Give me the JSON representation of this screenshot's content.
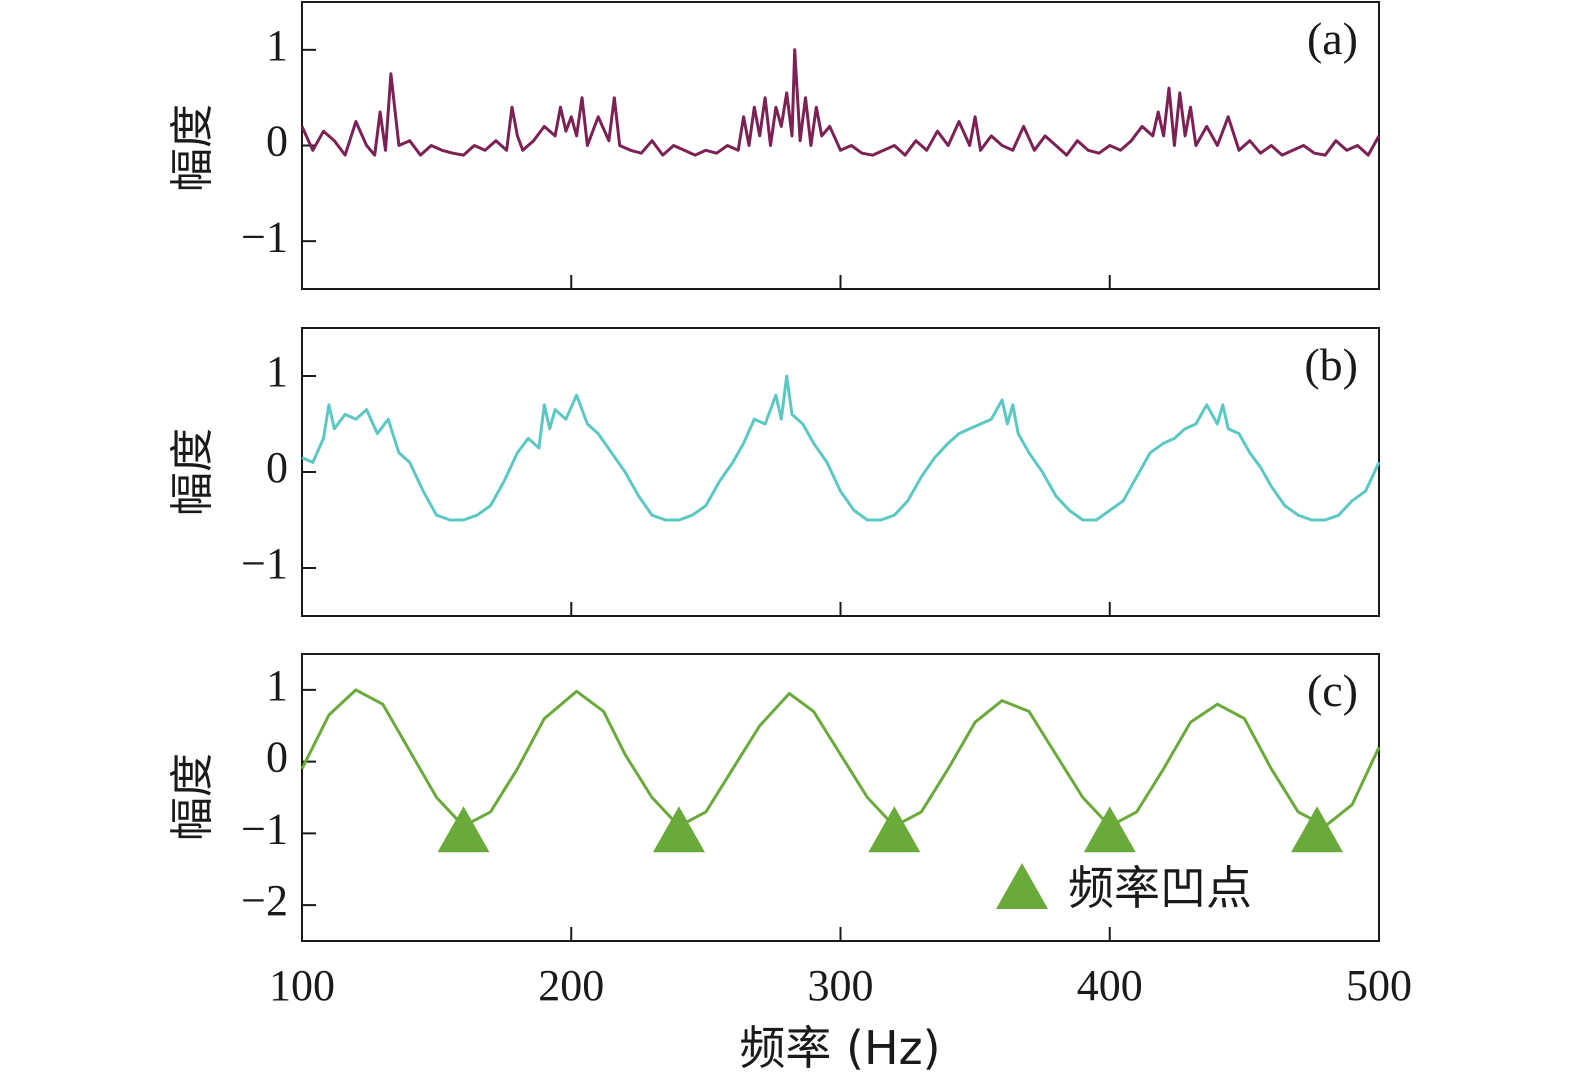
{
  "chart_data": [
    {
      "type": "line",
      "panel_label": "(a)",
      "ylabel": "幅度",
      "xlim": [
        100,
        500
      ],
      "ylim": [
        -1.5,
        1.5
      ],
      "yticks": [
        1,
        0,
        -1
      ],
      "ytick_labels": [
        "1",
        "0",
        "−1"
      ],
      "color": "#7b2154",
      "series": [
        {
          "name": "a",
          "x": [
            100,
            104,
            108,
            112,
            116,
            120,
            124,
            127,
            129,
            131,
            133,
            136,
            140,
            144,
            148,
            152,
            156,
            160,
            164,
            168,
            172,
            176,
            178,
            180,
            182,
            186,
            190,
            194,
            196,
            198,
            200,
            202,
            204,
            206,
            210,
            214,
            216,
            218,
            222,
            226,
            230,
            234,
            238,
            242,
            246,
            250,
            254,
            258,
            262,
            264,
            266,
            268,
            270,
            272,
            274,
            276,
            278,
            280,
            282,
            283,
            285,
            287,
            289,
            291,
            293,
            296,
            300,
            304,
            308,
            312,
            316,
            320,
            324,
            328,
            332,
            336,
            340,
            344,
            348,
            350,
            352,
            356,
            360,
            364,
            368,
            372,
            376,
            380,
            384,
            388,
            392,
            396,
            400,
            404,
            408,
            412,
            416,
            418,
            420,
            422,
            424,
            426,
            428,
            430,
            432,
            436,
            440,
            444,
            448,
            452,
            456,
            460,
            464,
            468,
            472,
            476,
            480,
            484,
            488,
            492,
            496,
            500
          ],
          "y": [
            0.2,
            -0.05,
            0.15,
            0.05,
            -0.1,
            0.25,
            0.0,
            -0.1,
            0.35,
            -0.05,
            0.75,
            0.0,
            0.05,
            -0.1,
            0.0,
            -0.05,
            -0.08,
            -0.1,
            0.0,
            -0.05,
            0.05,
            -0.05,
            0.4,
            0.1,
            -0.05,
            0.05,
            0.2,
            0.1,
            0.4,
            0.15,
            0.3,
            0.1,
            0.5,
            0.0,
            0.3,
            0.05,
            0.5,
            0.0,
            -0.05,
            -0.08,
            0.05,
            -0.1,
            0.0,
            -0.05,
            -0.1,
            -0.05,
            -0.08,
            0.0,
            -0.05,
            0.3,
            0.0,
            0.4,
            0.1,
            0.5,
            0.0,
            0.4,
            0.2,
            0.55,
            0.1,
            1.0,
            0.05,
            0.5,
            0.0,
            0.4,
            0.1,
            0.2,
            -0.05,
            0.0,
            -0.08,
            -0.1,
            -0.05,
            0.0,
            -0.1,
            0.05,
            -0.05,
            0.15,
            0.0,
            0.25,
            0.0,
            0.3,
            -0.05,
            0.1,
            0.0,
            -0.05,
            0.2,
            -0.05,
            0.1,
            0.0,
            -0.1,
            0.05,
            -0.05,
            -0.08,
            0.0,
            -0.05,
            0.05,
            0.2,
            0.1,
            0.35,
            0.1,
            0.6,
            0.0,
            0.55,
            0.1,
            0.4,
            0.0,
            0.2,
            0.0,
            0.3,
            -0.05,
            0.05,
            -0.08,
            0.0,
            -0.1,
            -0.05,
            0.0,
            -0.08,
            -0.1,
            0.05,
            -0.05,
            0.0,
            -0.1,
            0.1
          ]
        }
      ]
    },
    {
      "type": "line",
      "panel_label": "(b)",
      "ylabel": "幅度",
      "xlim": [
        100,
        500
      ],
      "ylim": [
        -1.5,
        1.5
      ],
      "yticks": [
        1,
        0,
        -1
      ],
      "ytick_labels": [
        "1",
        "0",
        "−1"
      ],
      "color": "#5bc8c3",
      "series": [
        {
          "name": "b",
          "x": [
            100,
            104,
            108,
            110,
            112,
            116,
            120,
            124,
            128,
            132,
            136,
            140,
            145,
            150,
            155,
            160,
            165,
            170,
            175,
            180,
            184,
            188,
            190,
            192,
            194,
            198,
            202,
            206,
            210,
            215,
            220,
            225,
            230,
            235,
            240,
            245,
            250,
            255,
            260,
            264,
            268,
            272,
            276,
            278,
            280,
            282,
            286,
            290,
            295,
            300,
            305,
            310,
            315,
            320,
            325,
            330,
            335,
            340,
            344,
            348,
            352,
            356,
            360,
            362,
            364,
            366,
            370,
            375,
            380,
            385,
            390,
            395,
            400,
            405,
            410,
            415,
            420,
            424,
            428,
            432,
            436,
            440,
            442,
            444,
            448,
            452,
            456,
            460,
            465,
            470,
            475,
            480,
            485,
            490,
            495,
            500
          ],
          "y": [
            0.15,
            0.1,
            0.35,
            0.7,
            0.45,
            0.6,
            0.55,
            0.65,
            0.4,
            0.55,
            0.2,
            0.1,
            -0.2,
            -0.45,
            -0.5,
            -0.5,
            -0.45,
            -0.35,
            -0.1,
            0.2,
            0.35,
            0.25,
            0.7,
            0.45,
            0.65,
            0.55,
            0.8,
            0.5,
            0.4,
            0.2,
            0.0,
            -0.25,
            -0.45,
            -0.5,
            -0.5,
            -0.45,
            -0.35,
            -0.1,
            0.1,
            0.3,
            0.55,
            0.5,
            0.8,
            0.55,
            1.0,
            0.6,
            0.5,
            0.3,
            0.1,
            -0.2,
            -0.4,
            -0.5,
            -0.5,
            -0.45,
            -0.3,
            -0.05,
            0.15,
            0.3,
            0.4,
            0.45,
            0.5,
            0.55,
            0.75,
            0.5,
            0.7,
            0.4,
            0.2,
            0.0,
            -0.25,
            -0.4,
            -0.5,
            -0.5,
            -0.4,
            -0.3,
            -0.05,
            0.2,
            0.3,
            0.35,
            0.45,
            0.5,
            0.7,
            0.5,
            0.7,
            0.45,
            0.4,
            0.2,
            0.05,
            -0.15,
            -0.35,
            -0.45,
            -0.5,
            -0.5,
            -0.45,
            -0.3,
            -0.2,
            0.1
          ]
        }
      ]
    },
    {
      "type": "line",
      "panel_label": "(c)",
      "ylabel": "幅度",
      "xlabel": "频率 (Hz)",
      "xlim": [
        100,
        500
      ],
      "ylim": [
        -2.5,
        1.5
      ],
      "yticks": [
        1,
        0,
        -1,
        -2
      ],
      "ytick_labels": [
        "1",
        "0",
        "−1",
        "−2"
      ],
      "xticks": [
        100,
        200,
        300,
        400,
        500
      ],
      "xtick_labels": [
        "100",
        "200",
        "300",
        "400",
        "500"
      ],
      "color": "#6aaa3a",
      "series": [
        {
          "name": "c",
          "x": [
            100,
            110,
            120,
            130,
            140,
            150,
            160,
            170,
            180,
            190,
            202,
            212,
            220,
            230,
            240,
            250,
            260,
            270,
            281,
            290,
            300,
            310,
            320,
            330,
            340,
            350,
            360,
            370,
            380,
            390,
            400,
            410,
            420,
            430,
            440,
            450,
            460,
            470,
            480,
            490,
            500
          ],
          "y": [
            -0.1,
            0.65,
            1.0,
            0.8,
            0.15,
            -0.5,
            -0.9,
            -0.7,
            -0.1,
            0.6,
            0.98,
            0.7,
            0.1,
            -0.5,
            -0.9,
            -0.7,
            -0.1,
            0.5,
            0.95,
            0.7,
            0.1,
            -0.5,
            -0.9,
            -0.7,
            -0.1,
            0.55,
            0.85,
            0.7,
            0.1,
            -0.5,
            -0.9,
            -0.7,
            -0.1,
            0.55,
            0.8,
            0.6,
            -0.1,
            -0.7,
            -0.9,
            -0.6,
            0.2
          ]
        }
      ],
      "markers": {
        "name": "频率凹点",
        "x": [
          160,
          240,
          320,
          400,
          477
        ],
        "y": [
          -0.9,
          -0.9,
          -0.9,
          -0.9,
          -0.9
        ]
      },
      "legend": {
        "label": "频率凹点",
        "placement": "bottom-right"
      }
    }
  ]
}
